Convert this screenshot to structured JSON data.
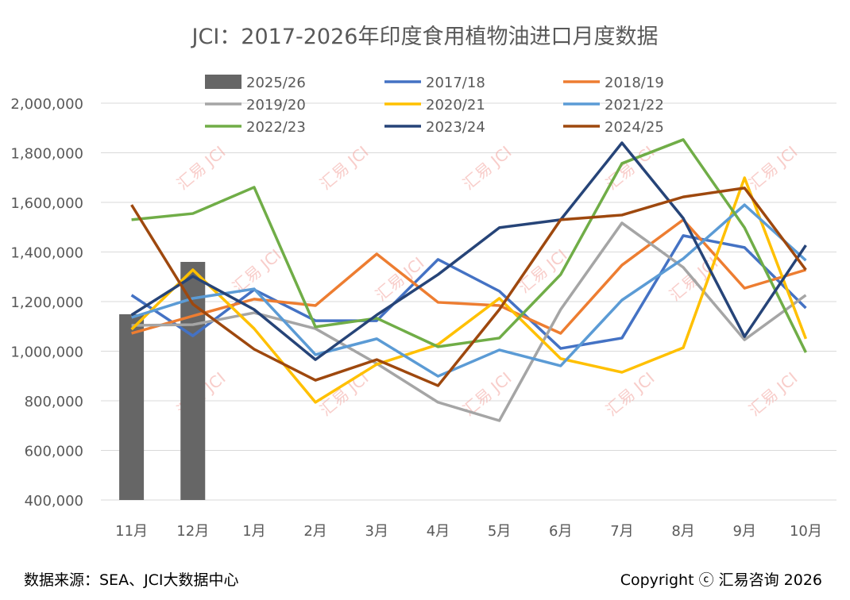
{
  "chart_data": {
    "type": "line",
    "title": "JCI：2017-2026年印度食用植物油进口月度数据",
    "xlabel": "",
    "ylabel": "",
    "ylim": [
      400000,
      2000000
    ],
    "yticks": [
      400000,
      600000,
      800000,
      1000000,
      1200000,
      1400000,
      1600000,
      1800000,
      2000000
    ],
    "ytick_labels": [
      "400,000",
      "600,000",
      "800,000",
      "1,000,000",
      "1,200,000",
      "1,400,000",
      "1,600,000",
      "1,800,000",
      "2,000,000"
    ],
    "grid": true,
    "legend_position": "top",
    "categories": [
      "11月",
      "12月",
      "1月",
      "2月",
      "3月",
      "4月",
      "5月",
      "6月",
      "7月",
      "8月",
      "9月",
      "10月"
    ],
    "bar_series": {
      "name": "2025/26",
      "color": "#666666",
      "values": [
        1149000,
        1360000
      ]
    },
    "series": [
      {
        "name": "2017/18",
        "color": "#4472C4",
        "values": [
          1226000,
          1062000,
          1248000,
          1123000,
          1123000,
          1370000,
          1242000,
          1011000,
          1053000,
          1466000,
          1418000,
          1174000
        ]
      },
      {
        "name": "2018/19",
        "color": "#ED7D31",
        "values": [
          1072000,
          1142000,
          1210000,
          1184000,
          1392000,
          1197000,
          1184000,
          1072000,
          1347000,
          1530000,
          1254000,
          1328000
        ]
      },
      {
        "name": "2019/20",
        "color": "#A5A5A5",
        "values": [
          1104000,
          1107000,
          1155000,
          1091000,
          950000,
          794000,
          720000,
          1168000,
          1517000,
          1338000,
          1046000,
          1226000
        ]
      },
      {
        "name": "2020/21",
        "color": "#FFC000",
        "values": [
          1088000,
          1328000,
          1091000,
          794000,
          947000,
          1027000,
          1213000,
          970000,
          915000,
          1014000,
          1699000,
          1050000
        ]
      },
      {
        "name": "2021/22",
        "color": "#5B9BD5",
        "values": [
          1136000,
          1213000,
          1251000,
          986000,
          1050000,
          899000,
          1005000,
          941000,
          1206000,
          1373000,
          1590000,
          1366000
        ]
      },
      {
        "name": "2022/23",
        "color": "#70AD47",
        "values": [
          1530000,
          1555000,
          1661000,
          1098000,
          1133000,
          1018000,
          1053000,
          1309000,
          1757000,
          1853000,
          1498000,
          995000
        ]
      },
      {
        "name": "2023/24",
        "color": "#264478",
        "values": [
          1146000,
          1302000,
          1168000,
          966000,
          1146000,
          1309000,
          1498000,
          1530000,
          1840000,
          1536000,
          1059000,
          1427000
        ]
      },
      {
        "name": "2024/25",
        "color": "#9E480E",
        "values": [
          1590000,
          1190000,
          1008000,
          883000,
          966000,
          861000,
          1168000,
          1530000,
          1549000,
          1622000,
          1658000,
          1328000
        ]
      }
    ]
  },
  "watermark": "汇易 JCI",
  "footer": {
    "source": "数据来源：SEA、JCI大数据中心",
    "copyright": "Copyright ⓒ 汇易咨询 2026"
  }
}
